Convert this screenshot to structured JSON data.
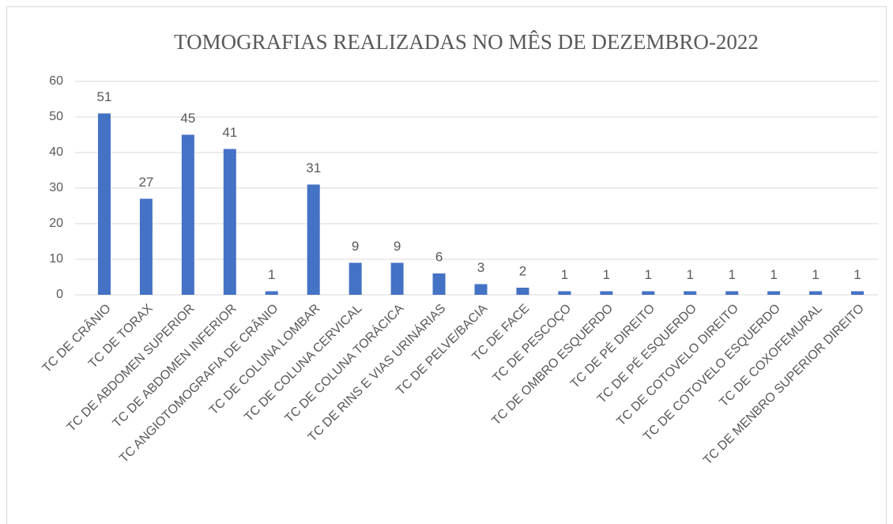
{
  "chart_data": {
    "type": "bar",
    "title": "TOMOGRAFIAS REALIZADAS NO MÊS DE DEZEMBRO-2022",
    "categories": [
      "TC DE CRÂNIO",
      "TC DE TORAX",
      "TC DE ABDOMEN SUPERIOR",
      "TC DE ABDOMEN INFERIOR",
      "TC ANGIOTOMOGRAFIA DE CRÂNIO",
      "TC DE COLUNA LOMBAR",
      "TC DE COLUNA CERVICAL",
      "TC DE COLUNA TORÁCICA",
      "TC DE RINS E VIAS URINÁRIAS",
      "TC DE PELVE/BACIA",
      "TC DE FACE",
      "TC DE PESCOÇO",
      "TC DE OMBRO ESQUERDO",
      "TC DE PÉ DIREITO",
      "TC DE PÉ ESQUERDO",
      "TC DE COTOVELO DIREITO",
      "TC DE COTOVELO ESQUERDO",
      "TC DE COXOFEMURAL",
      "TC DE MENBRO SUPERIOR DIREITO"
    ],
    "values": [
      51,
      27,
      45,
      41,
      1,
      31,
      9,
      9,
      6,
      3,
      2,
      1,
      1,
      1,
      1,
      1,
      1,
      1,
      1
    ],
    "color": "#4472c4",
    "ylim": [
      0,
      60
    ],
    "yticks": [
      0,
      10,
      20,
      30,
      40,
      50,
      60
    ],
    "grid": true
  }
}
